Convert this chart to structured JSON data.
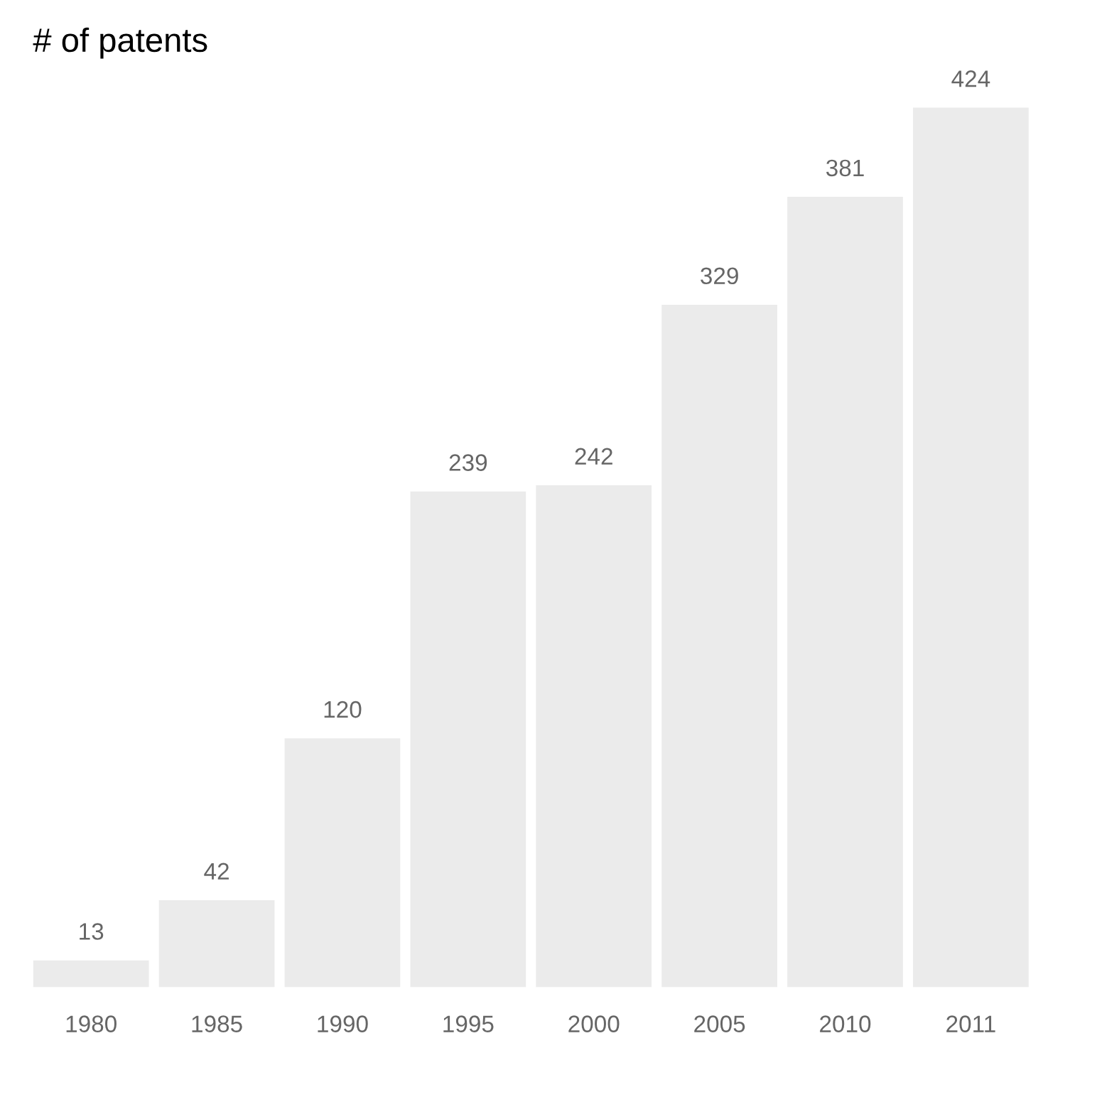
{
  "chart_data": {
    "type": "bar",
    "ylabel": "# of patents",
    "categories": [
      "1980",
      "1985",
      "1990",
      "1995",
      "2000",
      "2005",
      "2010",
      "2011"
    ],
    "values": [
      13,
      42,
      120,
      239,
      242,
      329,
      381,
      424
    ],
    "color": "#ebebeb",
    "data_labels": true,
    "grid": false,
    "legend": false
  }
}
